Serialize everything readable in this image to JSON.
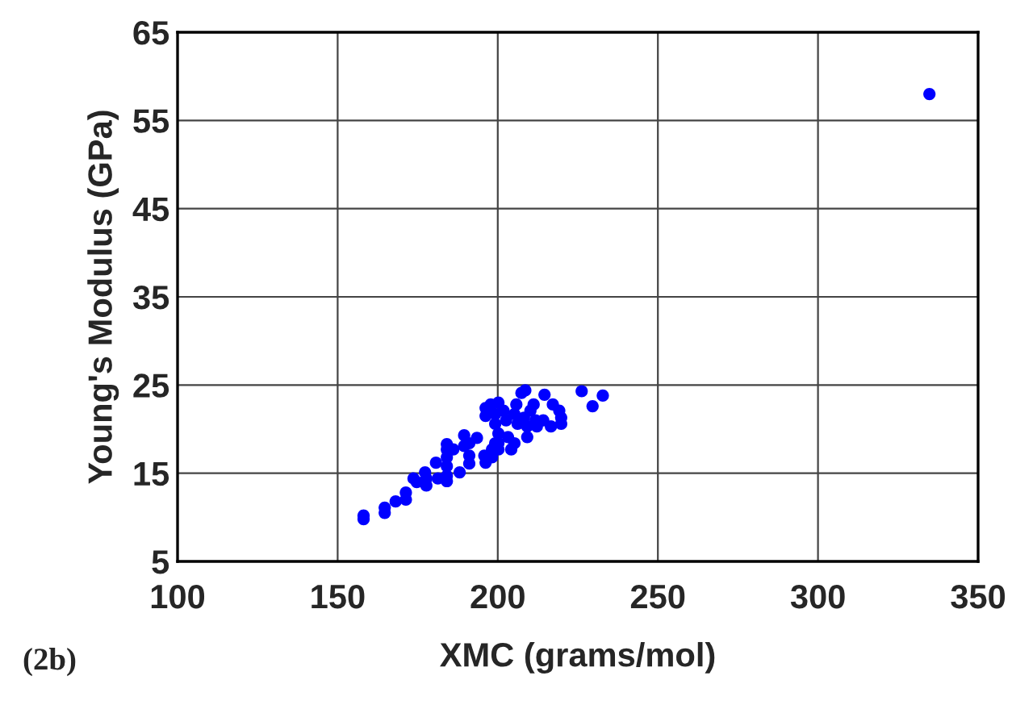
{
  "chart_data": {
    "type": "scatter",
    "xlabel": "XMC (grams/mol)",
    "ylabel": "Young's Modulus (GPa)",
    "annotations": [
      "(2b)"
    ],
    "xlim": [
      100,
      350
    ],
    "xticks": [
      100,
      150,
      200,
      250,
      300,
      350
    ],
    "ylim": [
      5,
      65
    ],
    "yticks": [
      5,
      15,
      25,
      35,
      45,
      55,
      65
    ],
    "grid": true,
    "marker": "circle",
    "legend": false,
    "series": [
      {
        "color": "#0000ff",
        "x": [
          158.1,
          158.1,
          164.7,
          164.7,
          168.1,
          171.3,
          171.3,
          173.7,
          174.7,
          177.3,
          177.7,
          177.7,
          180.7,
          181.3,
          184.1,
          184.1,
          184.1,
          184.1,
          184.1,
          184.1,
          186.1,
          188.1,
          189.5,
          189.5,
          191.1,
          191.1,
          191.1,
          193.5,
          195.8,
          196.2,
          196.2,
          196.2,
          197.8,
          198.2,
          198.2,
          199.2,
          199.2,
          199.2,
          200.2,
          200.2,
          200.2,
          200.2,
          201.8,
          202.6,
          203.2,
          204.2,
          205.2,
          205.2,
          205.8,
          206.2,
          207.4,
          208.2,
          208.6,
          209.2,
          209.2,
          210.2,
          211.2,
          211.8,
          212.2,
          214.2,
          214.6,
          217.2,
          216.6,
          219.2,
          219.8,
          219.8,
          226.2,
          229.6,
          232.8,
          334.8
        ],
        "values": [
          10.2,
          9.8,
          11.1,
          10.5,
          11.8,
          12.8,
          12.0,
          14.4,
          14.0,
          15.1,
          14.4,
          13.6,
          16.2,
          14.4,
          18.3,
          17.7,
          16.8,
          15.8,
          14.7,
          14.1,
          17.7,
          15.1,
          19.3,
          18.1,
          18.4,
          17.0,
          16.1,
          19.0,
          17.0,
          16.2,
          22.4,
          21.5,
          22.8,
          17.7,
          16.8,
          18.4,
          20.6,
          21.7,
          23.0,
          19.5,
          18.4,
          17.7,
          22.1,
          21.0,
          19.1,
          17.7,
          18.4,
          21.7,
          22.8,
          20.6,
          24.1,
          21.3,
          24.4,
          19.1,
          20.3,
          22.1,
          22.8,
          21.0,
          20.3,
          21.0,
          23.9,
          22.8,
          20.3,
          22.1,
          21.3,
          20.6,
          24.3,
          22.6,
          23.8,
          58.0
        ]
      }
    ]
  }
}
